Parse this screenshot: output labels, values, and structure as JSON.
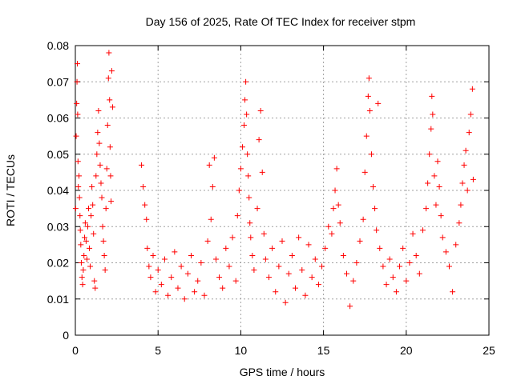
{
  "chart_data": {
    "type": "scatter",
    "title": "Day 156 of 2025, Rate Of TEC Index for receiver stpm",
    "xlabel": "GPS time / hours",
    "ylabel": "ROTI / TECUs",
    "xlim": [
      0,
      25
    ],
    "ylim": [
      0,
      0.08
    ],
    "xticks": [
      "0",
      "5",
      "10",
      "15",
      "20",
      "25"
    ],
    "yticks": [
      "0",
      "0.01",
      "0.02",
      "0.03",
      "0.04",
      "0.05",
      "0.06",
      "0.07",
      "0.08"
    ],
    "grid": true,
    "marker": "+",
    "color": "#ff0000",
    "series": [
      {
        "name": "ROTI",
        "points": [
          [
            0.02,
            0.035
          ],
          [
            0.05,
            0.055
          ],
          [
            0.08,
            0.064
          ],
          [
            0.1,
            0.07
          ],
          [
            0.12,
            0.075
          ],
          [
            0.14,
            0.061
          ],
          [
            0.16,
            0.048
          ],
          [
            0.18,
            0.041
          ],
          [
            0.22,
            0.044
          ],
          [
            0.25,
            0.038
          ],
          [
            0.28,
            0.033
          ],
          [
            0.3,
            0.029
          ],
          [
            0.33,
            0.025
          ],
          [
            0.36,
            0.02
          ],
          [
            0.4,
            0.016
          ],
          [
            0.44,
            0.014
          ],
          [
            0.48,
            0.018
          ],
          [
            0.52,
            0.022
          ],
          [
            0.56,
            0.027
          ],
          [
            0.6,
            0.031
          ],
          [
            0.65,
            0.026
          ],
          [
            0.7,
            0.021
          ],
          [
            0.75,
            0.03
          ],
          [
            0.8,
            0.035
          ],
          [
            0.85,
            0.024
          ],
          [
            0.9,
            0.019
          ],
          [
            0.95,
            0.033
          ],
          [
            1.0,
            0.041
          ],
          [
            1.05,
            0.036
          ],
          [
            1.1,
            0.028
          ],
          [
            1.15,
            0.015
          ],
          [
            1.2,
            0.013
          ],
          [
            1.25,
            0.044
          ],
          [
            1.3,
            0.05
          ],
          [
            1.35,
            0.056
          ],
          [
            1.4,
            0.062
          ],
          [
            1.45,
            0.053
          ],
          [
            1.5,
            0.047
          ],
          [
            1.55,
            0.042
          ],
          [
            1.6,
            0.038
          ],
          [
            1.65,
            0.03
          ],
          [
            1.7,
            0.026
          ],
          [
            1.75,
            0.022
          ],
          [
            1.8,
            0.018
          ],
          [
            1.85,
            0.035
          ],
          [
            1.9,
            0.046
          ],
          [
            1.95,
            0.058
          ],
          [
            2.0,
            0.071
          ],
          [
            2.03,
            0.078
          ],
          [
            2.07,
            0.065
          ],
          [
            2.1,
            0.052
          ],
          [
            2.13,
            0.044
          ],
          [
            2.16,
            0.037
          ],
          [
            2.2,
            0.073
          ],
          [
            2.25,
            0.063
          ],
          [
            4.0,
            0.047
          ],
          [
            4.1,
            0.041
          ],
          [
            4.2,
            0.036
          ],
          [
            4.3,
            0.032
          ],
          [
            4.35,
            0.024
          ],
          [
            4.45,
            0.019
          ],
          [
            4.55,
            0.016
          ],
          [
            4.7,
            0.022
          ],
          [
            4.85,
            0.012
          ],
          [
            5.0,
            0.018
          ],
          [
            5.2,
            0.014
          ],
          [
            5.4,
            0.021
          ],
          [
            5.6,
            0.011
          ],
          [
            5.8,
            0.016
          ],
          [
            6.0,
            0.023
          ],
          [
            6.2,
            0.013
          ],
          [
            6.4,
            0.019
          ],
          [
            6.6,
            0.01
          ],
          [
            6.8,
            0.017
          ],
          [
            7.0,
            0.022
          ],
          [
            7.2,
            0.012
          ],
          [
            7.4,
            0.015
          ],
          [
            7.6,
            0.02
          ],
          [
            7.8,
            0.011
          ],
          [
            8.0,
            0.026
          ],
          [
            8.1,
            0.047
          ],
          [
            8.2,
            0.032
          ],
          [
            8.3,
            0.041
          ],
          [
            8.4,
            0.049
          ],
          [
            8.5,
            0.021
          ],
          [
            8.7,
            0.016
          ],
          [
            8.9,
            0.013
          ],
          [
            9.1,
            0.024
          ],
          [
            9.3,
            0.019
          ],
          [
            9.5,
            0.027
          ],
          [
            9.7,
            0.015
          ],
          [
            9.8,
            0.033
          ],
          [
            9.9,
            0.04
          ],
          [
            10.0,
            0.046
          ],
          [
            10.1,
            0.052
          ],
          [
            10.2,
            0.058
          ],
          [
            10.25,
            0.065
          ],
          [
            10.3,
            0.07
          ],
          [
            10.35,
            0.061
          ],
          [
            10.4,
            0.05
          ],
          [
            10.45,
            0.044
          ],
          [
            10.5,
            0.038
          ],
          [
            10.55,
            0.031
          ],
          [
            10.6,
            0.027
          ],
          [
            10.7,
            0.022
          ],
          [
            10.8,
            0.018
          ],
          [
            11.0,
            0.035
          ],
          [
            11.1,
            0.054
          ],
          [
            11.2,
            0.062
          ],
          [
            11.3,
            0.045
          ],
          [
            11.4,
            0.028
          ],
          [
            11.5,
            0.021
          ],
          [
            11.7,
            0.016
          ],
          [
            11.9,
            0.024
          ],
          [
            12.1,
            0.012
          ],
          [
            12.3,
            0.019
          ],
          [
            12.5,
            0.026
          ],
          [
            12.7,
            0.009
          ],
          [
            12.9,
            0.017
          ],
          [
            13.1,
            0.022
          ],
          [
            13.3,
            0.013
          ],
          [
            13.5,
            0.027
          ],
          [
            13.7,
            0.018
          ],
          [
            13.9,
            0.011
          ],
          [
            14.1,
            0.025
          ],
          [
            14.3,
            0.016
          ],
          [
            14.5,
            0.021
          ],
          [
            14.7,
            0.014
          ],
          [
            14.9,
            0.019
          ],
          [
            15.1,
            0.024
          ],
          [
            15.3,
            0.03
          ],
          [
            15.5,
            0.028
          ],
          [
            15.6,
            0.035
          ],
          [
            15.7,
            0.04
          ],
          [
            15.8,
            0.046
          ],
          [
            15.9,
            0.036
          ],
          [
            16.0,
            0.031
          ],
          [
            16.2,
            0.022
          ],
          [
            16.4,
            0.017
          ],
          [
            16.6,
            0.008
          ],
          [
            16.8,
            0.015
          ],
          [
            17.0,
            0.02
          ],
          [
            17.2,
            0.026
          ],
          [
            17.4,
            0.032
          ],
          [
            17.5,
            0.045
          ],
          [
            17.6,
            0.055
          ],
          [
            17.7,
            0.066
          ],
          [
            17.75,
            0.071
          ],
          [
            17.8,
            0.062
          ],
          [
            17.9,
            0.05
          ],
          [
            18.0,
            0.041
          ],
          [
            18.1,
            0.035
          ],
          [
            18.2,
            0.029
          ],
          [
            18.3,
            0.064
          ],
          [
            18.4,
            0.024
          ],
          [
            18.6,
            0.019
          ],
          [
            18.8,
            0.014
          ],
          [
            19.0,
            0.021
          ],
          [
            19.2,
            0.016
          ],
          [
            19.4,
            0.012
          ],
          [
            19.6,
            0.019
          ],
          [
            19.8,
            0.024
          ],
          [
            20.0,
            0.015
          ],
          [
            20.2,
            0.02
          ],
          [
            20.4,
            0.028
          ],
          [
            20.6,
            0.022
          ],
          [
            20.8,
            0.017
          ],
          [
            21.0,
            0.029
          ],
          [
            21.2,
            0.035
          ],
          [
            21.3,
            0.042
          ],
          [
            21.4,
            0.05
          ],
          [
            21.5,
            0.057
          ],
          [
            21.55,
            0.066
          ],
          [
            21.6,
            0.061
          ],
          [
            21.7,
            0.044
          ],
          [
            21.8,
            0.036
          ],
          [
            21.9,
            0.048
          ],
          [
            22.0,
            0.041
          ],
          [
            22.1,
            0.033
          ],
          [
            22.2,
            0.027
          ],
          [
            22.4,
            0.023
          ],
          [
            22.6,
            0.019
          ],
          [
            22.8,
            0.012
          ],
          [
            23.0,
            0.025
          ],
          [
            23.2,
            0.031
          ],
          [
            23.3,
            0.036
          ],
          [
            23.4,
            0.042
          ],
          [
            23.5,
            0.047
          ],
          [
            23.6,
            0.051
          ],
          [
            23.7,
            0.04
          ],
          [
            23.8,
            0.056
          ],
          [
            23.9,
            0.061
          ],
          [
            24.0,
            0.068
          ],
          [
            24.05,
            0.043
          ]
        ]
      }
    ]
  }
}
